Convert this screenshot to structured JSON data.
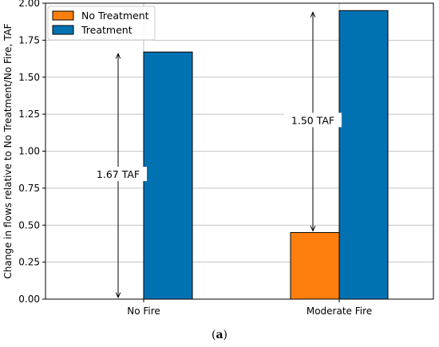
{
  "chart_data": {
    "type": "bar",
    "categories": [
      "No Fire",
      "Moderate Fire"
    ],
    "series": [
      {
        "name": "No Treatment",
        "values": [
          0.0,
          0.45
        ],
        "color": "#ff7f0e"
      },
      {
        "name": "Treatment",
        "values": [
          1.67,
          1.95
        ],
        "color": "#0072b2"
      }
    ],
    "ylabel": "Change in flows relative to No Treatment/No Fire, TAF",
    "xlabel": "",
    "ylim": [
      0,
      2.0
    ],
    "yticks": [
      "0.00",
      "0.25",
      "0.50",
      "0.75",
      "1.00",
      "1.25",
      "1.50",
      "1.75",
      "2.00"
    ],
    "grid": true,
    "legend_position": "top-left",
    "annotations": [
      {
        "text": "1.67 TAF",
        "category": "No Fire",
        "from": 0.0,
        "to": 1.67
      },
      {
        "text": "1.50 TAF",
        "category": "Moderate Fire",
        "from": 0.45,
        "to": 1.95
      }
    ]
  },
  "caption": {
    "prefix": "(",
    "letter": "a",
    "suffix": ")"
  }
}
